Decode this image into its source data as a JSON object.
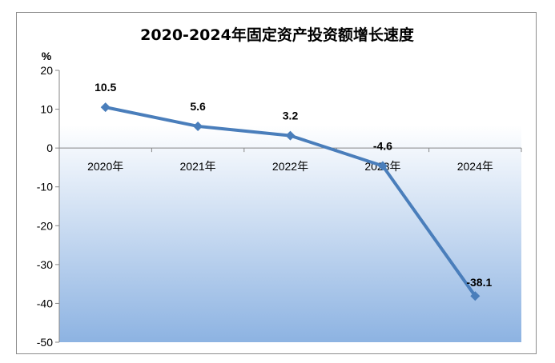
{
  "chart_data": {
    "type": "line",
    "title": "2020-2024年固定资产投资额增长速度",
    "ylabel": "%",
    "categories": [
      "2020年",
      "2021年",
      "2022年",
      "2023年",
      "2024年"
    ],
    "values": [
      10.5,
      5.6,
      3.2,
      -4.6,
      -38.1
    ],
    "data_labels": [
      "10.5",
      "5.6",
      "3.2",
      "-4.6",
      "-38.1"
    ],
    "ylim": [
      -50,
      20
    ],
    "yticks": [
      20,
      10,
      0,
      -10,
      -20,
      -30,
      -40,
      -50
    ],
    "grid": false,
    "legend": "none",
    "colors": {
      "line": "#4a7ebb",
      "plot_bg_top": "#ffffff",
      "plot_bg_bottom": "#8db3e2"
    }
  }
}
